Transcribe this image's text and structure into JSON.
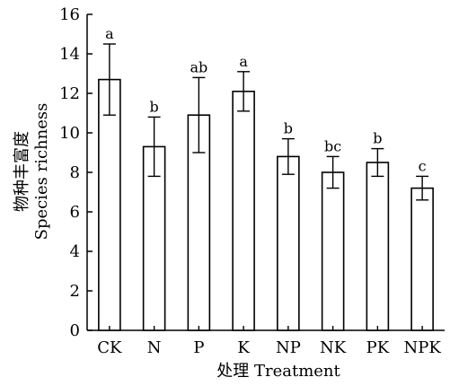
{
  "chart_data": {
    "type": "bar",
    "categories": [
      "CK",
      "N",
      "P",
      "K",
      "NP",
      "NK",
      "PK",
      "NPK"
    ],
    "values": [
      12.7,
      9.3,
      10.9,
      12.1,
      8.8,
      8.0,
      8.5,
      7.2
    ],
    "errors": [
      1.8,
      1.5,
      1.9,
      1.0,
      0.9,
      0.8,
      0.7,
      0.6
    ],
    "significance": [
      "a",
      "b",
      "ab",
      "a",
      "b",
      "bc",
      "b",
      "c"
    ],
    "ylim": [
      0,
      16
    ],
    "yticks": [
      0,
      2,
      4,
      6,
      8,
      10,
      12,
      14,
      16
    ],
    "ylabel_cn": "物种丰富度",
    "ylabel_en": "Species richness",
    "xlabel": "处理 Treatment",
    "bar_fill": "#ffffff",
    "bar_stroke": "#000000",
    "grid": false
  }
}
